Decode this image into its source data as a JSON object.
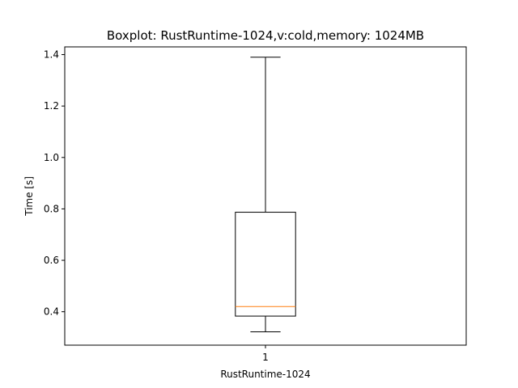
{
  "chart_data": {
    "type": "box",
    "title": "Boxplot: RustRuntime-1024,v:cold,memory: 1024MB",
    "xlabel": "RustRuntime-1024",
    "ylabel": "Time [s]",
    "ylim": [
      0.27,
      1.43
    ],
    "yticks": [
      0.4,
      0.6,
      0.8,
      1.0,
      1.2,
      1.4
    ],
    "ytick_labels": [
      "0.4",
      "0.6",
      "0.8",
      "1.0",
      "1.2",
      "1.4"
    ],
    "categories": [
      "1"
    ],
    "boxes": [
      {
        "label": "1",
        "whisker_low": 0.322,
        "q1": 0.383,
        "median": 0.42,
        "q3": 0.787,
        "whisker_high": 1.39
      }
    ],
    "grid": false,
    "colors": {
      "median": "#ff7f0e",
      "box": "#000000",
      "axes": "#000000"
    }
  }
}
